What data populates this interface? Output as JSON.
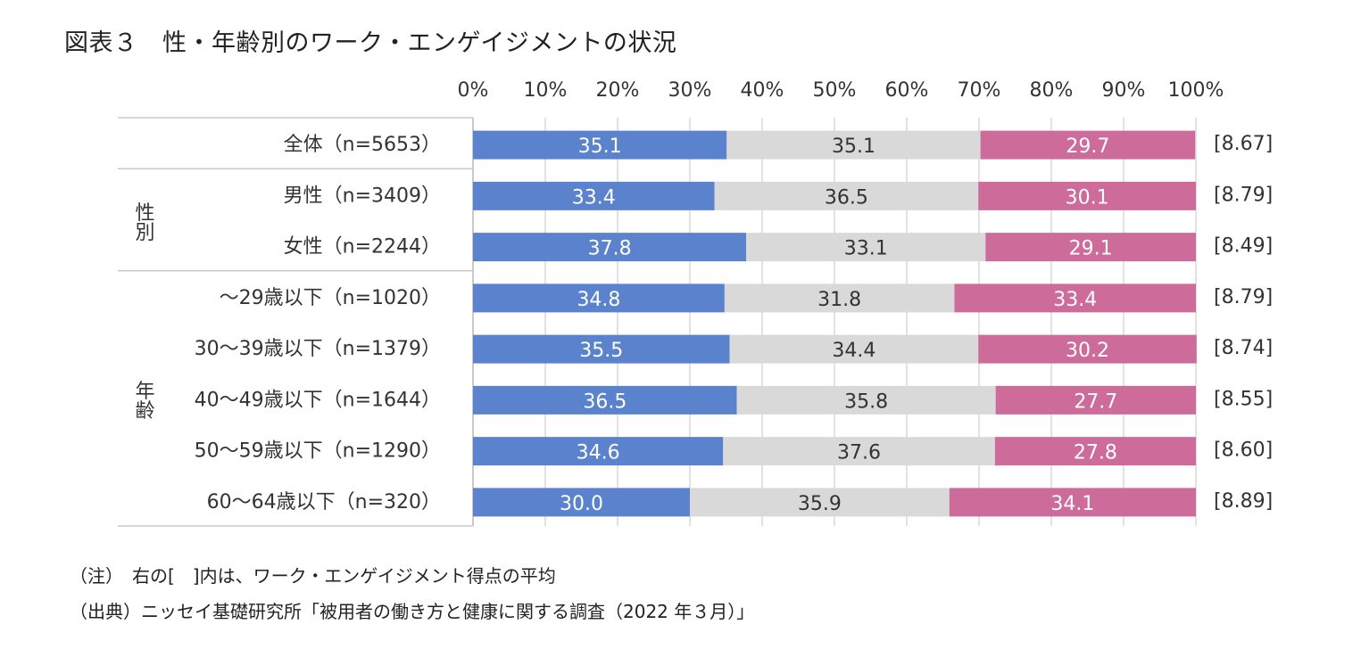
{
  "header": {
    "title": "図表３　性・年齢別のワーク・エンゲイジメントの状況"
  },
  "notes": {
    "note": "（注）　右の[　]内は、ワーク・エンゲイジメント得点の平均",
    "source": "（出典）ニッセイ基礎研究所「被用者の働き方と健康に関する調査（2022 年３月）」"
  },
  "colors": {
    "series1": "#5b82cc",
    "series2": "#d9d9d9",
    "series3": "#cd6b9b",
    "grid": "#d9d9d9"
  },
  "chart_data": {
    "type": "bar",
    "orientation": "horizontal",
    "stacked": true,
    "percent": true,
    "title": "図表３　性・年齢別のワーク・エンゲイジメントの状況",
    "xlim": [
      0,
      100
    ],
    "xticks": [
      "0%",
      "10%",
      "20%",
      "30%",
      "40%",
      "50%",
      "60%",
      "70%",
      "80%",
      "90%",
      "100%"
    ],
    "categories": [
      "全体（n=5653）",
      "男性（n=3409）",
      "女性（n=2244）",
      "～29歳以下（n=1020）",
      "30～39歳以下（n=1379）",
      "40～49歳以下（n=1644）",
      "50～59歳以下（n=1290）",
      "60～64歳以下（n=320）"
    ],
    "groups": [
      {
        "label": "性別",
        "from": 1,
        "to": 2
      },
      {
        "label": "年齢",
        "from": 3,
        "to": 7
      }
    ],
    "series": [
      {
        "name": "series1",
        "values": [
          35.1,
          33.4,
          37.8,
          34.8,
          35.5,
          36.5,
          34.6,
          30.0
        ],
        "labels": [
          "35.1",
          "33.4",
          "37.8",
          "34.8",
          "35.5",
          "36.5",
          "34.6",
          "30.0"
        ]
      },
      {
        "name": "series2",
        "values": [
          35.1,
          36.5,
          33.1,
          31.8,
          34.4,
          35.8,
          37.6,
          35.9
        ],
        "labels": [
          "35.1",
          "36.5",
          "33.1",
          "31.8",
          "34.4",
          "35.8",
          "37.6",
          "35.9"
        ]
      },
      {
        "name": "series3",
        "values": [
          29.7,
          30.1,
          29.1,
          33.4,
          30.2,
          27.7,
          27.8,
          34.1
        ],
        "labels": [
          "29.7",
          "30.1",
          "29.1",
          "33.4",
          "30.2",
          "27.7",
          "27.8",
          "34.1"
        ]
      }
    ],
    "scores": [
      "[8.67]",
      "[8.79]",
      "[8.49]",
      "[8.79]",
      "[8.74]",
      "[8.55]",
      "[8.60]",
      "[8.89]"
    ]
  }
}
